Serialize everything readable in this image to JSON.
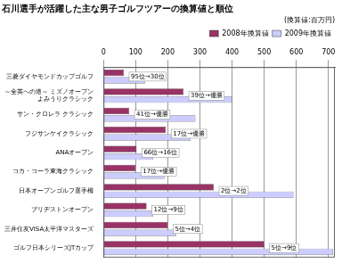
{
  "chart_data": {
    "type": "bar",
    "orientation": "horizontal",
    "title": "石川選手が活躍した主な男子ゴルフツアーの換算値と順位",
    "subtitle": "(換算値:百万円)",
    "categories": [
      "三菱ダイヤモンドカップゴルフ",
      "～全英への道～ ミズノオープン\nよみうりクラシック",
      "サン・クロレラ クラシック",
      "フジサンケイクラシック",
      "ANAオープン",
      "コカ・コーラ東海クラシック",
      "日本オープンゴルフ選手権",
      "ブリヂストンオープン",
      "三井住友VISA太平洋マスターズ",
      "ゴルフ日本シリーズJTカップ"
    ],
    "series": [
      {
        "name": "2008年換算値",
        "color": "#993366",
        "values": [
          63,
          249,
          80,
          194,
          103,
          100,
          343,
          134,
          200,
          500
        ]
      },
      {
        "name": "2009年換算値",
        "color": "#ccccff",
        "values": [
          129,
          400,
          286,
          271,
          154,
          191,
          591,
          154,
          226,
          714
        ]
      }
    ],
    "annotations": [
      "95位→30位",
      "39位→優勝",
      "41位→優勝",
      "17位→優勝",
      "66位→16位",
      "17位→優勝",
      "2位→2位",
      "12位→9位",
      "5位→4位",
      "5位→9位"
    ],
    "xlim": [
      0,
      720
    ],
    "xticks": [
      0,
      100,
      200,
      300,
      400,
      500,
      600,
      700
    ],
    "grid": true,
    "legend": "upper right"
  }
}
